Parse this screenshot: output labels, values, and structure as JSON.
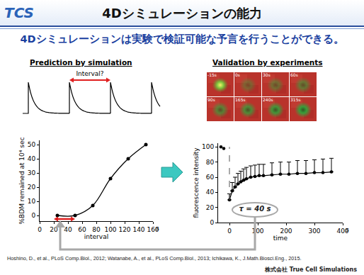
{
  "slide": {
    "logo": "TCS",
    "title": "4Dシミュレーションの能力",
    "subtitle": "4Dシミュレーションは実験で検証可能な予言を行うことができる。",
    "left_heading": "Prediction by simulation",
    "right_heading": "Validation by experiments",
    "interval_label": "Interval?",
    "image_labels": [
      "-15s",
      "0s",
      "30s",
      "60s",
      "90s",
      "165s",
      "240s",
      "315s"
    ],
    "tau_label": "τ = 40 s",
    "references": "Hoshino, D., et al., PLoS Comp.Biol., 2012; Watanabe, A., et al., PLoS Comp.Biol., 2013; Ichikawa, K., J.Math.Biosci.Eng., 2015.",
    "company": "株式会社 True Cell Simulations"
  },
  "chart_data": [
    {
      "type": "line",
      "x": [
        25,
        50,
        75,
        100,
        125,
        150
      ],
      "values": [
        0,
        0,
        7,
        26,
        40,
        50
      ],
      "x_label": "interval",
      "x_unit": "s",
      "y_label": "%BDM remained at 10⁴ sec",
      "xlim": [
        0,
        160
      ],
      "xticks": [
        0,
        20,
        40,
        60,
        80,
        100,
        120,
        140,
        160
      ],
      "ylim": [
        -4,
        53
      ],
      "yticks": [
        0,
        10,
        20,
        30,
        40,
        50
      ],
      "grid": false,
      "color": "#000000",
      "marker": "circle",
      "line_style": "smooth"
    },
    {
      "type": "scatter",
      "x_label": "time",
      "x_unit": "s",
      "y_label": "fluorescence intensity",
      "xlim": [
        -40,
        400
      ],
      "xticks": [
        0,
        100,
        200,
        300,
        400
      ],
      "ylim": [
        0,
        105
      ],
      "yticks": [
        0,
        20,
        40,
        60,
        80,
        100
      ],
      "grid": false,
      "series": [
        {
          "x": [
            -30,
            -20
          ],
          "values": [
            100,
            98
          ],
          "color": "#000000",
          "marker": "circle",
          "line_style": "none"
        },
        {
          "x": [
            0,
            10,
            20,
            30,
            40,
            50,
            60,
            75,
            90,
            105,
            120,
            150,
            180,
            210,
            240,
            270,
            300,
            330,
            360
          ],
          "values": [
            30,
            42,
            47,
            51,
            54,
            56,
            58,
            60,
            61,
            62,
            62,
            63,
            64,
            64,
            65,
            65,
            66,
            66,
            67
          ],
          "errors_upper": [
            8,
            11,
            13,
            14,
            14,
            15,
            15,
            15,
            15,
            15,
            15,
            16,
            16,
            16,
            17,
            17,
            17,
            18,
            18
          ],
          "color": "#000000",
          "marker": "circle",
          "line_style": "solid"
        }
      ]
    }
  ]
}
